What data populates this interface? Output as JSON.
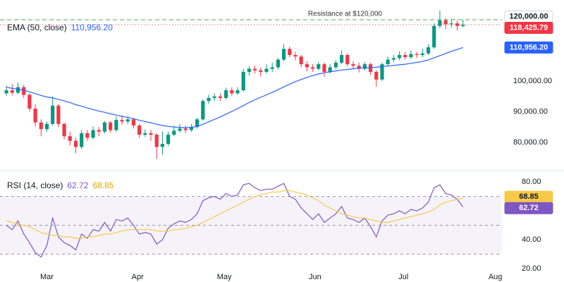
{
  "chart_data": [
    {
      "type": "candlestick",
      "up_color": "#089981",
      "down_color": "#f23645",
      "xlim": [
        -0.5,
        85.5
      ],
      "ylim": [
        71700,
        125300
      ],
      "yticks": [
        {
          "value": 80000,
          "label": "80,000.00"
        },
        {
          "value": 90000,
          "label": "90,000.00"
        },
        {
          "value": 100000,
          "label": "100,000.00"
        }
      ],
      "open": [
        96000,
        97000,
        96200,
        98000,
        95500,
        91000,
        86500,
        84300,
        86000,
        92000,
        86000,
        82000,
        80500,
        78500,
        83000,
        81500,
        84000,
        83500,
        86500,
        84000,
        87300,
        86800,
        87500,
        85500,
        82500,
        83000,
        82500,
        78500,
        79500,
        82500,
        83800,
        84500,
        84000,
        85000,
        87500,
        93500,
        94500,
        95000,
        94500,
        97000,
        96000,
        97000,
        103000,
        104000,
        103500,
        103000,
        104000,
        104500,
        107000,
        110500,
        108500,
        108000,
        105500,
        104500,
        104000,
        105500,
        103000,
        104500,
        106000,
        108500,
        105500,
        105000,
        104000,
        105500,
        103000,
        100500,
        105500,
        107000,
        107500,
        108500,
        107800,
        108800,
        108500,
        109000,
        111000,
        118000,
        119800,
        118500,
        118800,
        118000
      ],
      "high": [
        98500,
        99000,
        99500,
        98800,
        96000,
        92500,
        87500,
        86800,
        95000,
        92500,
        86500,
        83500,
        81500,
        84000,
        84000,
        85200,
        85000,
        87000,
        87000,
        88500,
        88800,
        88500,
        88000,
        86000,
        84200,
        84000,
        83000,
        83500,
        83500,
        85500,
        86000,
        85500,
        86000,
        88000,
        94000,
        95500,
        96000,
        96000,
        97800,
        98000,
        98000,
        104000,
        104800,
        105000,
        104500,
        105500,
        106000,
        107500,
        112000,
        111200,
        109500,
        108500,
        106500,
        105500,
        106200,
        106000,
        105500,
        106800,
        110000,
        109000,
        106500,
        106000,
        106200,
        106000,
        103500,
        106000,
        108000,
        108500,
        109800,
        109500,
        110000,
        109500,
        110500,
        112000,
        118800,
        123000,
        120500,
        120300,
        119800,
        120000
      ],
      "low": [
        95200,
        95300,
        95800,
        94500,
        90000,
        85200,
        82000,
        83500,
        85500,
        85000,
        81000,
        79000,
        76500,
        77800,
        80500,
        81000,
        82000,
        83000,
        83200,
        83500,
        85800,
        86000,
        84500,
        81500,
        81800,
        80500,
        74600,
        76000,
        78800,
        82000,
        83200,
        83000,
        83500,
        84500,
        87000,
        92500,
        93500,
        93500,
        94000,
        95200,
        95500,
        96500,
        101800,
        102500,
        101500,
        102500,
        103000,
        103800,
        106500,
        107800,
        106800,
        104500,
        103200,
        103000,
        103500,
        101500,
        102500,
        103800,
        105500,
        104800,
        104000,
        102800,
        103500,
        102000,
        98200,
        100000,
        105000,
        106200,
        106800,
        107000,
        107200,
        107500,
        107800,
        108500,
        110500,
        117200,
        117000,
        117500,
        116500,
        117500
      ],
      "close": [
        97000,
        96200,
        98000,
        95500,
        91000,
        86500,
        84300,
        86000,
        92000,
        86000,
        82000,
        80500,
        78500,
        83000,
        81500,
        84000,
        83500,
        86500,
        84000,
        87300,
        86800,
        87500,
        85500,
        82500,
        83000,
        82500,
        78500,
        79500,
        82500,
        83800,
        84500,
        84000,
        85000,
        87500,
        93500,
        94500,
        95000,
        94500,
        97000,
        96000,
        97000,
        103000,
        104000,
        103500,
        103000,
        104000,
        104500,
        107000,
        110500,
        108500,
        108000,
        105500,
        104500,
        104000,
        105500,
        103000,
        104500,
        106000,
        108500,
        105500,
        105000,
        104000,
        105500,
        103000,
        100500,
        105500,
        107000,
        107500,
        108500,
        107800,
        108800,
        108500,
        109000,
        111000,
        118000,
        119800,
        118500,
        118800,
        118000,
        118425.79
      ],
      "last_price_label": "118,425.79",
      "overlays": [
        {
          "name": "EMA (50, close)",
          "color": "#2962ff",
          "last_value_label": "110,956.20",
          "values": [
            98000,
            97600,
            97300,
            97000,
            96500,
            95900,
            95300,
            94800,
            94500,
            94000,
            93500,
            93000,
            92300,
            91800,
            91200,
            90700,
            90200,
            89800,
            89300,
            88900,
            88500,
            88100,
            87700,
            87200,
            86800,
            86400,
            85900,
            85500,
            85200,
            85000,
            84900,
            84800,
            84900,
            85200,
            85900,
            86700,
            87500,
            88300,
            89200,
            90100,
            91000,
            92000,
            93000,
            93900,
            94700,
            95500,
            96300,
            97200,
            98100,
            99000,
            99800,
            100500,
            101200,
            101800,
            102300,
            102700,
            103000,
            103300,
            103600,
            103800,
            104000,
            104200,
            104300,
            104400,
            104500,
            104700,
            104900,
            105100,
            105300,
            105500,
            105800,
            106100,
            106400,
            106900,
            107600,
            108300,
            109000,
            109700,
            110300,
            110956.2
          ]
        }
      ],
      "hlines": [
        {
          "label": "Resistance at $120,000",
          "value": 120000,
          "value_label": "120,000.00",
          "color": "#4caf50"
        }
      ]
    },
    {
      "type": "line",
      "title": "RSI (14, close)",
      "xlim": [
        -0.5,
        85.5
      ],
      "ylim": [
        16.6,
        85.9
      ],
      "yticks": [
        {
          "value": 20,
          "label": "20.00"
        },
        {
          "value": 40,
          "label": "40.00"
        },
        {
          "value": 80,
          "label": "80.00"
        }
      ],
      "xticks": [
        {
          "value": 7,
          "label": "Mar"
        },
        {
          "value": 22.7,
          "label": "Apr"
        },
        {
          "value": 37.7,
          "label": "May"
        },
        {
          "value": 53.4,
          "label": "Jun"
        },
        {
          "value": 68.7,
          "label": "Jul"
        },
        {
          "value": 84.6,
          "label": "Aug"
        }
      ],
      "bands": [
        70,
        50,
        30
      ],
      "band_color": "#7e57c2",
      "series": [
        {
          "color": "#7e57c2",
          "last_value_label": "62.72",
          "values": [
            50,
            47,
            53,
            44,
            38,
            31,
            28,
            36,
            55,
            42,
            38,
            36,
            33,
            44,
            41,
            47,
            46,
            52,
            46,
            54,
            53,
            55,
            50,
            44,
            45,
            44,
            37,
            40,
            48,
            51,
            53,
            52,
            54,
            58,
            67,
            69,
            70,
            68,
            72,
            70,
            71,
            78,
            79,
            76,
            74,
            75,
            75,
            77,
            79,
            70,
            68,
            62,
            58,
            54,
            58,
            52,
            55,
            58,
            63,
            55,
            54,
            52,
            55,
            49,
            42,
            53,
            57,
            58,
            60,
            58,
            61,
            60,
            62,
            66,
            76,
            78,
            72,
            71,
            68,
            62.72
          ]
        },
        {
          "color": "#f7c948",
          "last_value_label": "68.85",
          "values": [
            53,
            52,
            51,
            50,
            49,
            47,
            45,
            44,
            43,
            43,
            42,
            42,
            41,
            41,
            42,
            42,
            43,
            44,
            44,
            45,
            46,
            47,
            47,
            47,
            47,
            47,
            46,
            46,
            46,
            47,
            47,
            48,
            49,
            50,
            52,
            54,
            56,
            58,
            60,
            62,
            64,
            66,
            68,
            70,
            71,
            72,
            73,
            73,
            74,
            74,
            73,
            72,
            71,
            69,
            67,
            64,
            62,
            60,
            58,
            57,
            56,
            55,
            55,
            54,
            53,
            52,
            52,
            53,
            54,
            55,
            56,
            57,
            58,
            59,
            61,
            64,
            66,
            67,
            68,
            68.85
          ]
        }
      ]
    }
  ]
}
